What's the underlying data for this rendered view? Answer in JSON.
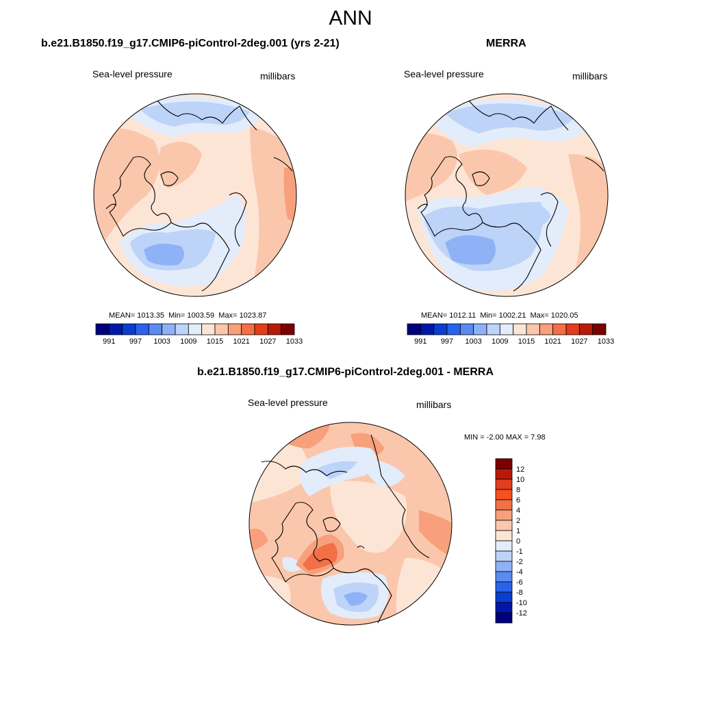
{
  "header": {
    "title": "ANN"
  },
  "panels": {
    "model": {
      "title": "b.e21.B1850.f19_g17.CMIP6-piControl-2deg.001 (yrs 2-21)",
      "field_label": "Sea-level pressure",
      "units": "millibars",
      "stats": {
        "mean_label": "MEAN=",
        "mean": "1013.35",
        "min_label": "Min=",
        "min": "1003.59",
        "max_label": "Max=",
        "max": "1023.87"
      }
    },
    "obs": {
      "title": "MERRA",
      "field_label": "Sea-level pressure",
      "units": "millibars",
      "stats": {
        "mean_label": "MEAN=",
        "mean": "1012.11",
        "min_label": "Min=",
        "min": "1002.21",
        "max_label": "Max=",
        "max": "1020.05"
      }
    },
    "diff": {
      "title": "b.e21.B1850.f19_g17.CMIP6-piControl-2deg.001 - MERRA",
      "field_label": "Sea-level pressure",
      "units": "millibars",
      "stats_text": "MIN =  -2.00 MAX =   7.98"
    }
  },
  "colorbar_abs": {
    "ticks": [
      "991",
      "997",
      "1003",
      "1009",
      "1015",
      "1021",
      "1027",
      "1033"
    ],
    "colors": [
      "#00007d",
      "#0018a8",
      "#0a3ed0",
      "#2a62ec",
      "#5a8af2",
      "#8fb2f6",
      "#bdd3f8",
      "#e2ecfb",
      "#fde5d6",
      "#fbc7ac",
      "#f8a07c",
      "#f36f46",
      "#e23d1c",
      "#b81a0a",
      "#7d0000"
    ]
  },
  "colorbar_diff": {
    "labels": [
      "12",
      "10",
      "8",
      "6",
      "4",
      "2",
      "1",
      "0",
      "-1",
      "-2",
      "-4",
      "-6",
      "-8",
      "-10",
      "-12"
    ],
    "colors": [
      "#7d0000",
      "#b81a0a",
      "#e23d1c",
      "#f5511e",
      "#f36f46",
      "#f8a07c",
      "#fbc7ac",
      "#fde5d6",
      "#e2ecfb",
      "#bdd3f8",
      "#8fb2f6",
      "#5a8af2",
      "#2a62ec",
      "#0a3ed0",
      "#0018a8",
      "#00007d"
    ]
  }
}
